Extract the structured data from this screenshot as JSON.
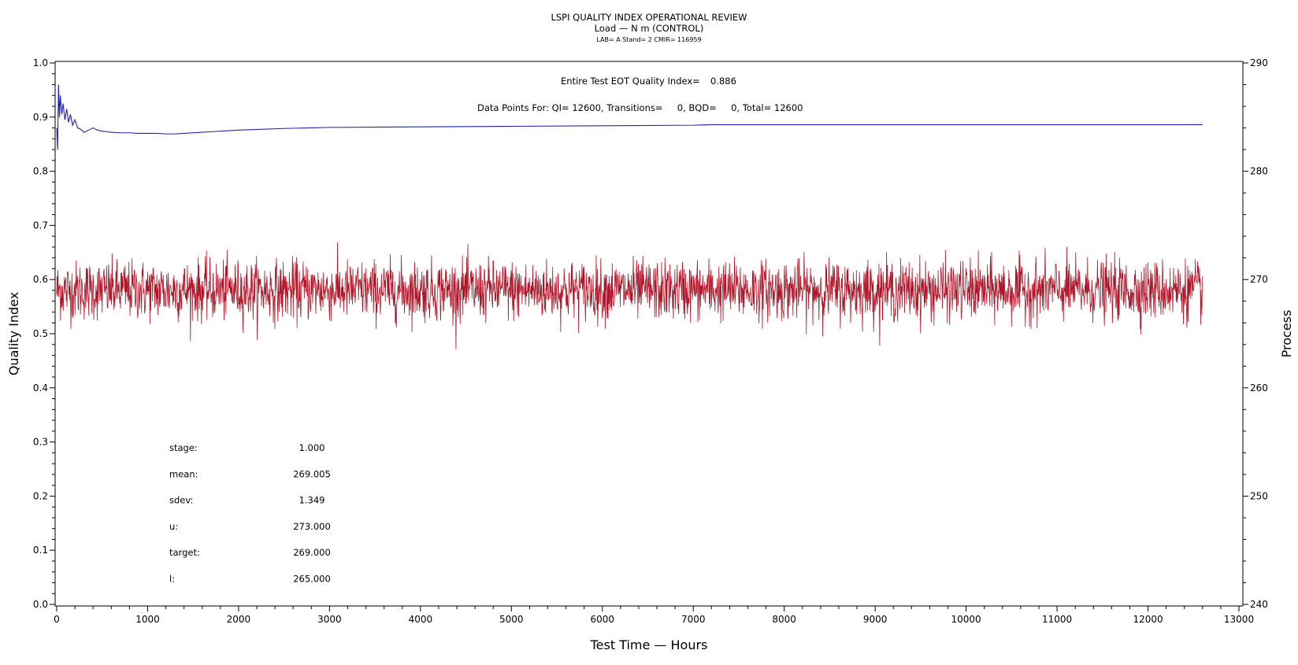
{
  "chart_data": {
    "type": "line",
    "title": "LSPI QUALITY INDEX OPERATIONAL REVIEW",
    "subtitle": "Load — N m (CONTROL)",
    "subsubtitle": "LAB= A Stand= 2 CMIR= 116959",
    "xlabel": "Test Time — Hours",
    "ylabel": "Quality Index",
    "y2label": "Process",
    "xlim": [
      0,
      13000
    ],
    "ylim": [
      0.0,
      1.0
    ],
    "y2lim": [
      240,
      290
    ],
    "x_ticks": [
      "0",
      "1000",
      "2000",
      "3000",
      "4000",
      "5000",
      "6000",
      "7000",
      "8000",
      "9000",
      "10000",
      "11000",
      "12000",
      "13000"
    ],
    "y_ticks": [
      "0.0",
      "0.1",
      "0.2",
      "0.3",
      "0.4",
      "0.5",
      "0.6",
      "0.7",
      "0.8",
      "0.9",
      "1.0"
    ],
    "y2_ticks": [
      "240",
      "250",
      "260",
      "270",
      "280",
      "290"
    ],
    "annotations": {
      "eot_label": "Entire Test EOT Quality Index=",
      "eot_value": "0.886",
      "points_line": "Data Points For: QI= 12600, Transitions=     0, BQD=     0, Total= 12600"
    },
    "stats": [
      {
        "label": "stage:",
        "value": "1.000"
      },
      {
        "label": "mean:",
        "value": "269.005"
      },
      {
        "label": "sdev:",
        "value": "1.349"
      },
      {
        "label": "u:",
        "value": "273.000"
      },
      {
        "label": "target:",
        "value": "269.000"
      },
      {
        "label": "l:",
        "value": "265.000"
      }
    ],
    "series": [
      {
        "axis": "left",
        "color": "#1f1fbf",
        "x": [
          0,
          10,
          20,
          30,
          40,
          55,
          70,
          90,
          110,
          130,
          150,
          175,
          200,
          230,
          260,
          300,
          350,
          400,
          450,
          500,
          550,
          600,
          700,
          800,
          900,
          1000,
          1100,
          1200,
          1300,
          1400,
          1500,
          1700,
          2000,
          2500,
          3000,
          4000,
          5000,
          6000,
          7000,
          7200,
          8000,
          9000,
          10000,
          11000,
          12000,
          12600
        ],
        "y": [
          0.88,
          0.84,
          0.96,
          0.9,
          0.94,
          0.905,
          0.925,
          0.895,
          0.915,
          0.89,
          0.905,
          0.885,
          0.895,
          0.88,
          0.878,
          0.872,
          0.876,
          0.88,
          0.876,
          0.874,
          0.873,
          0.872,
          0.871,
          0.871,
          0.87,
          0.87,
          0.87,
          0.869,
          0.869,
          0.87,
          0.871,
          0.873,
          0.876,
          0.879,
          0.881,
          0.882,
          0.883,
          0.884,
          0.885,
          0.886,
          0.886,
          0.886,
          0.886,
          0.886,
          0.886,
          0.886
        ]
      },
      {
        "axis": "right",
        "color": "#b01528",
        "x_range": [
          0,
          12600
        ],
        "samples": 12600,
        "mean": 269.005,
        "sdev": 1.349
      }
    ]
  }
}
